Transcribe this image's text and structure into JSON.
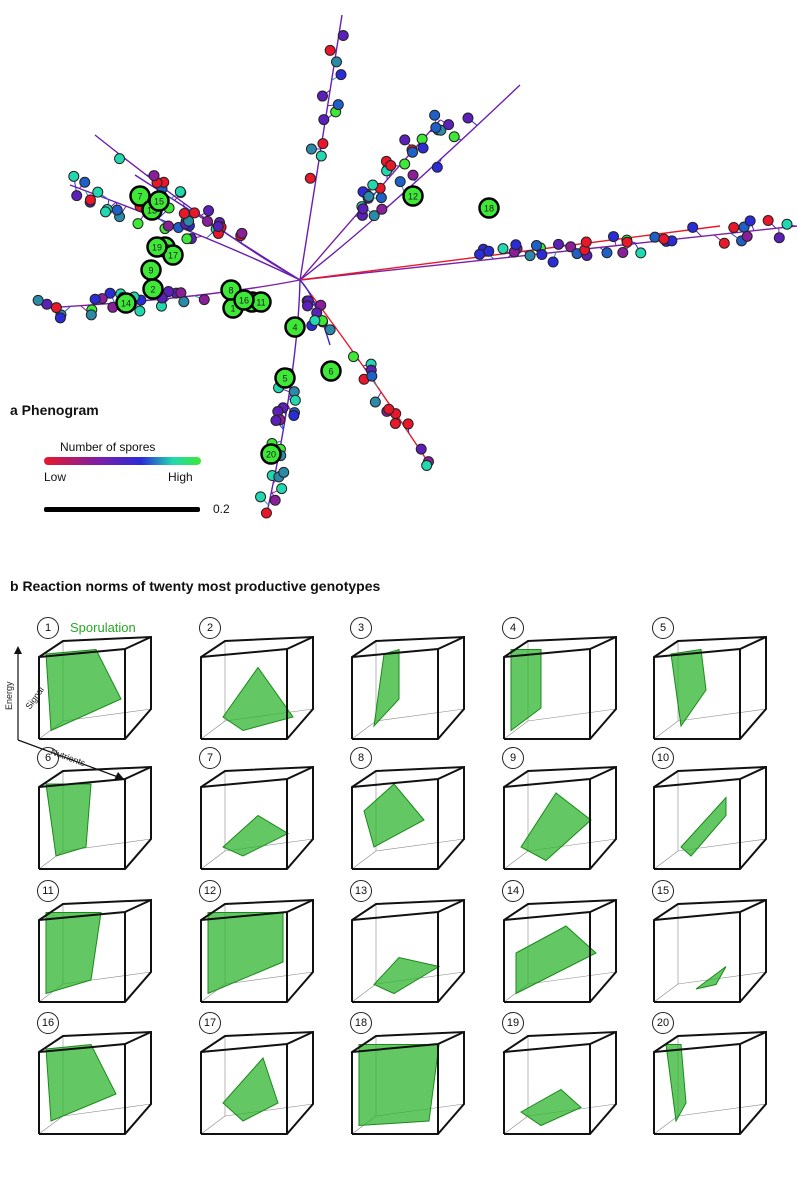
{
  "panel_a": {
    "title": "a  Phenogram",
    "legend": {
      "title": "Number of spores",
      "low_label": "Low",
      "high_label": "High",
      "gradient_colors": [
        "#e8182a",
        "#7a1fa8",
        "#2b2bd8",
        "#22d8b0",
        "#3de836"
      ]
    },
    "scale_bar_label": "0.2",
    "highlighted_genotypes": [
      "1",
      "2",
      "3",
      "4",
      "5",
      "6",
      "7",
      "8",
      "9",
      "10",
      "11",
      "12",
      "13",
      "14",
      "15",
      "16",
      "17",
      "18",
      "19",
      "20"
    ],
    "colors": {
      "highlight_fill": "#3de836",
      "highlight_stroke": "#000000",
      "low": "#e8182a",
      "high": "#3de836"
    }
  },
  "panel_b": {
    "title": "b  Reaction norms of twenty most productive genotypes",
    "series_label": "Sporulation",
    "axes": {
      "energy": "Energy",
      "signal": "Signal",
      "nutrients": "Nutrients"
    },
    "genotypes": [
      {
        "number": "1"
      },
      {
        "number": "2"
      },
      {
        "number": "3"
      },
      {
        "number": "4"
      },
      {
        "number": "5"
      },
      {
        "number": "6"
      },
      {
        "number": "7"
      },
      {
        "number": "8"
      },
      {
        "number": "9"
      },
      {
        "number": "10"
      },
      {
        "number": "11"
      },
      {
        "number": "12"
      },
      {
        "number": "13"
      },
      {
        "number": "14"
      },
      {
        "number": "15"
      },
      {
        "number": "16"
      },
      {
        "number": "17"
      },
      {
        "number": "18"
      },
      {
        "number": "19"
      },
      {
        "number": "20"
      }
    ],
    "colors": {
      "volume": "#2fb52f",
      "volume_edge": "#1a8a1a",
      "label": "#27a827"
    }
  }
}
